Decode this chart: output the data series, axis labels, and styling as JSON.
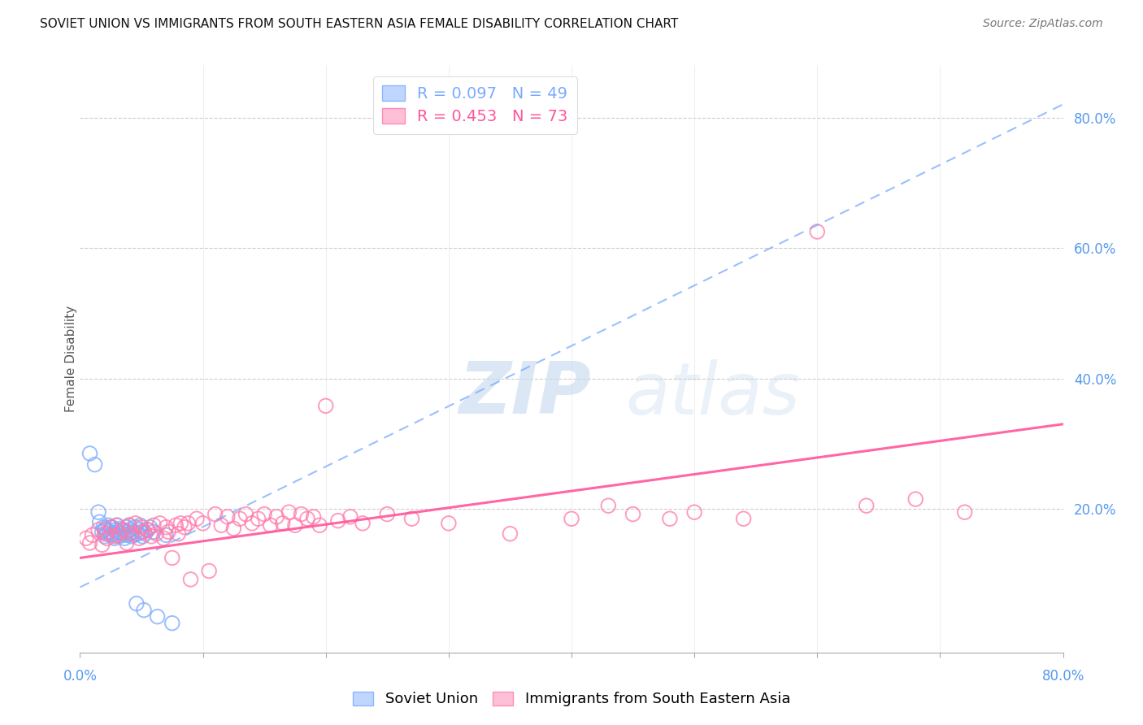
{
  "title": "SOVIET UNION VS IMMIGRANTS FROM SOUTH EASTERN ASIA FEMALE DISABILITY CORRELATION CHART",
  "source": "Source: ZipAtlas.com",
  "ylabel": "Female Disability",
  "xlim": [
    0.0,
    0.8
  ],
  "ylim": [
    -0.02,
    0.88
  ],
  "yticks": [
    0.0,
    0.2,
    0.4,
    0.6,
    0.8
  ],
  "ytick_labels": [
    "",
    "20.0%",
    "40.0%",
    "60.0%",
    "80.0%"
  ],
  "watermark_zip": "ZIP",
  "watermark_atlas": "atlas",
  "series": [
    {
      "name": "Soviet Union",
      "R": 0.097,
      "N": 49,
      "color": "#7aaaff",
      "line_color": "#7aaaff",
      "line_style": "dashed",
      "x": [
        0.008,
        0.012,
        0.015,
        0.016,
        0.018,
        0.019,
        0.02,
        0.02,
        0.021,
        0.022,
        0.023,
        0.024,
        0.025,
        0.026,
        0.027,
        0.028,
        0.029,
        0.03,
        0.03,
        0.031,
        0.032,
        0.033,
        0.034,
        0.035,
        0.036,
        0.037,
        0.038,
        0.039,
        0.04,
        0.04,
        0.041,
        0.042,
        0.043,
        0.044,
        0.045,
        0.046,
        0.047,
        0.048,
        0.049,
        0.05,
        0.051,
        0.052,
        0.053,
        0.055,
        0.057,
        0.06,
        0.063,
        0.07,
        0.075
      ],
      "y": [
        0.285,
        0.268,
        0.195,
        0.18,
        0.165,
        0.172,
        0.168,
        0.158,
        0.17,
        0.162,
        0.175,
        0.165,
        0.16,
        0.172,
        0.162,
        0.155,
        0.168,
        0.16,
        0.175,
        0.165,
        0.158,
        0.17,
        0.162,
        0.168,
        0.155,
        0.16,
        0.172,
        0.165,
        0.162,
        0.175,
        0.168,
        0.158,
        0.165,
        0.16,
        0.172,
        0.055,
        0.162,
        0.168,
        0.175,
        0.165,
        0.158,
        0.045,
        0.162,
        0.168,
        0.172,
        0.165,
        0.035,
        0.16,
        0.025
      ],
      "trend_x": [
        0.0,
        0.8
      ],
      "trend_y": [
        0.08,
        0.82
      ]
    },
    {
      "name": "Immigrants from South Eastern Asia",
      "R": 0.453,
      "N": 73,
      "color": "#ff7aaa",
      "line_color": "#ff5599",
      "line_style": "solid",
      "x": [
        0.005,
        0.008,
        0.01,
        0.015,
        0.018,
        0.02,
        0.022,
        0.025,
        0.028,
        0.03,
        0.032,
        0.035,
        0.038,
        0.04,
        0.042,
        0.045,
        0.048,
        0.05,
        0.052,
        0.055,
        0.058,
        0.06,
        0.062,
        0.065,
        0.068,
        0.07,
        0.072,
        0.075,
        0.078,
        0.08,
        0.082,
        0.085,
        0.088,
        0.09,
        0.095,
        0.1,
        0.105,
        0.11,
        0.115,
        0.12,
        0.125,
        0.13,
        0.135,
        0.14,
        0.145,
        0.15,
        0.155,
        0.16,
        0.165,
        0.17,
        0.175,
        0.18,
        0.185,
        0.19,
        0.195,
        0.2,
        0.21,
        0.22,
        0.23,
        0.25,
        0.27,
        0.3,
        0.35,
        0.4,
        0.43,
        0.45,
        0.48,
        0.5,
        0.54,
        0.6,
        0.64,
        0.68,
        0.72
      ],
      "y": [
        0.155,
        0.148,
        0.16,
        0.168,
        0.145,
        0.162,
        0.155,
        0.172,
        0.158,
        0.175,
        0.162,
        0.168,
        0.148,
        0.175,
        0.162,
        0.178,
        0.155,
        0.172,
        0.165,
        0.168,
        0.158,
        0.175,
        0.162,
        0.178,
        0.155,
        0.172,
        0.165,
        0.125,
        0.175,
        0.162,
        0.178,
        0.172,
        0.178,
        0.092,
        0.185,
        0.178,
        0.105,
        0.192,
        0.175,
        0.188,
        0.17,
        0.185,
        0.192,
        0.178,
        0.185,
        0.192,
        0.175,
        0.188,
        0.178,
        0.195,
        0.175,
        0.192,
        0.185,
        0.188,
        0.175,
        0.358,
        0.182,
        0.188,
        0.178,
        0.192,
        0.185,
        0.178,
        0.162,
        0.185,
        0.205,
        0.192,
        0.185,
        0.195,
        0.185,
        0.625,
        0.205,
        0.215,
        0.195
      ],
      "trend_x": [
        0.0,
        0.8
      ],
      "trend_y": [
        0.125,
        0.33
      ]
    }
  ]
}
